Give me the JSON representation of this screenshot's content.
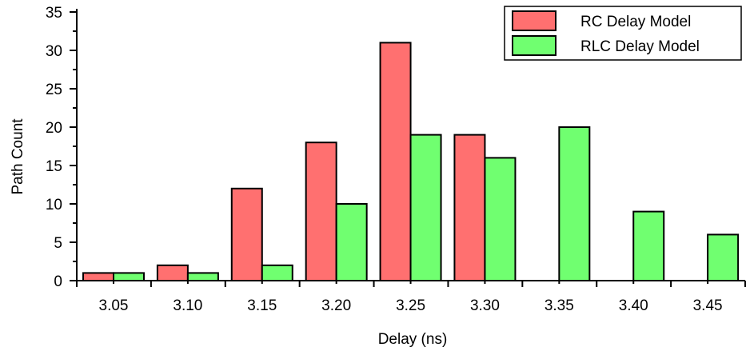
{
  "chart_data": {
    "type": "bar",
    "xlabel": "Delay (ns)",
    "ylabel": "Path Count",
    "categories": [
      "3.05",
      "3.10",
      "3.15",
      "3.20",
      "3.25",
      "3.30",
      "3.35",
      "3.40",
      "3.45"
    ],
    "ylim": [
      0,
      35
    ],
    "yticks": [
      "0",
      "5",
      "10",
      "15",
      "20",
      "25",
      "30",
      "35"
    ],
    "series": [
      {
        "name": "RC Delay Model",
        "color": "#ff7070",
        "values": [
          1,
          2,
          12,
          18,
          31,
          19,
          0,
          0,
          0
        ]
      },
      {
        "name": "RLC Delay Model",
        "color": "#70ff70",
        "values": [
          1,
          1,
          2,
          10,
          19,
          16,
          20,
          9,
          6
        ]
      }
    ],
    "grid": false,
    "legend_position": "top-right"
  }
}
